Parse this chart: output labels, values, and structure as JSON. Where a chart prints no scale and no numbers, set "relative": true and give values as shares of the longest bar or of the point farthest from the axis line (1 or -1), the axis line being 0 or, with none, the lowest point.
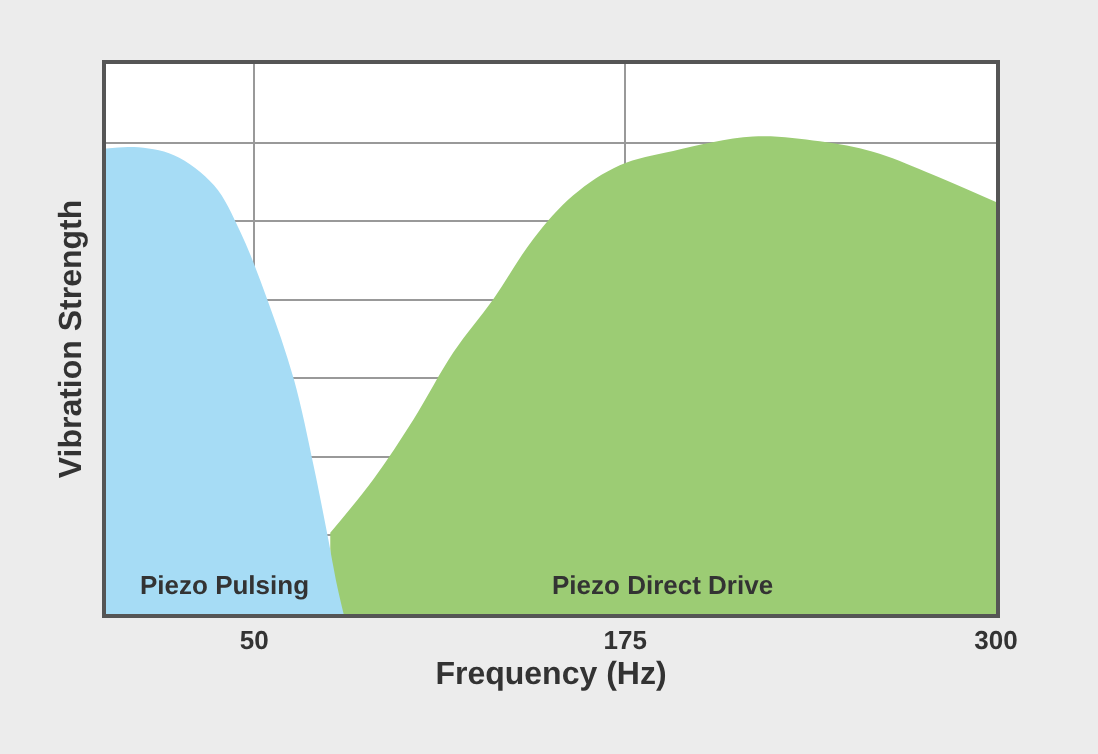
{
  "chart_data": {
    "type": "area",
    "relative": true,
    "xlabel": "Frequency (Hz)",
    "ylabel": "Vibration Strength",
    "xlim": [
      0,
      300
    ],
    "xticks": [
      50,
      175,
      300
    ],
    "grid": true,
    "legend": false,
    "series": [
      {
        "name": "Piezo Pulsing",
        "color": "#a6dcf5",
        "x": [
          0,
          9.4,
          22.9,
          36.4,
          45.3,
          54.3,
          63.3,
          70,
          74.5,
          77.9,
          80.1
        ],
        "values": [
          0.975,
          0.978,
          0.961,
          0.898,
          0.8,
          0.66,
          0.492,
          0.31,
          0.17,
          0.059,
          0
        ]
      },
      {
        "name": "Piezo Direct Drive",
        "color": "#9ccc74",
        "x": [
          75.6,
          90.2,
          103.7,
          117.1,
          130.6,
          144.1,
          157.5,
          173.2,
          191.2,
          218.1,
          240.6,
          258.5,
          276.5,
          300
        ],
        "values": [
          0.17,
          0.283,
          0.408,
          0.548,
          0.66,
          0.786,
          0.877,
          0.94,
          0.97,
          1.0,
          0.99,
          0.968,
          0.926,
          0.863
        ]
      }
    ]
  }
}
